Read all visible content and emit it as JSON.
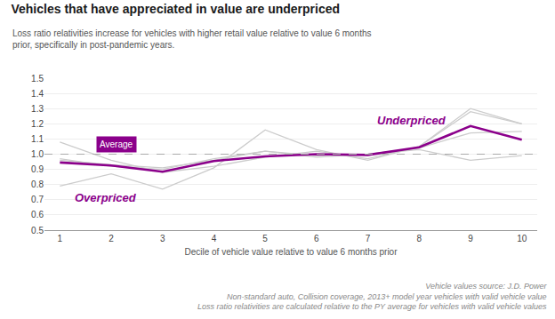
{
  "chart_data": {
    "type": "line",
    "title": "Vehicles that have appreciated in value are underpriced",
    "subtitle": "Loss ratio relativities increase for vehicles with higher retail value relative to value 6 months\nprior, specifically in post-pandemic years.",
    "xlabel": "Decile of vehicle value relative to value 6 months prior",
    "notes": [
      "Vehicle values source: J.D. Power",
      "Non-standard auto, Collision coverage, 2013+ model year vehicles with valid vehicle value",
      "Loss ratio relativities are calculated relative to the PY average for vehicles with valid vehicle values"
    ],
    "x": [
      1,
      2,
      3,
      4,
      5,
      6,
      7,
      8,
      9,
      10
    ],
    "xlim": [
      0.7,
      10.3
    ],
    "xticks": [
      1,
      2,
      3,
      4,
      5,
      6,
      7,
      8,
      9,
      10
    ],
    "ylim": [
      0.5,
      1.5
    ],
    "yticks": [
      0.5,
      0.6,
      0.7,
      0.8,
      0.9,
      {
        "value": 1.0,
        "label": "1.0"
      },
      1.1,
      1.2,
      1.3,
      1.4,
      1.5
    ],
    "grid": true,
    "series": [
      {
        "color": "#cccccc",
        "values": [
          1.08,
          0.96,
          0.88,
          0.92,
          0.98,
          1.02,
          0.97,
          1.05,
          1.3,
          1.2
        ]
      },
      {
        "color": "#cccccc",
        "values": [
          0.79,
          0.87,
          0.77,
          0.91,
          1.16,
          1.03,
          0.96,
          1.05,
          1.28,
          1.2
        ]
      },
      {
        "color": "#cccccc",
        "values": [
          0.96,
          0.93,
          0.91,
          0.96,
          1.02,
          0.99,
          1.0,
          1.04,
          1.14,
          1.15
        ]
      },
      {
        "color": "#cccccc",
        "values": [
          0.97,
          0.92,
          0.9,
          0.97,
          1.02,
          0.98,
          1.0,
          1.03,
          0.96,
          0.99
        ]
      },
      {
        "color": "#8B008B",
        "values": [
          0.945,
          0.925,
          0.885,
          0.955,
          0.985,
          1.0,
          0.995,
          1.045,
          1.185,
          1.095
        ]
      }
    ],
    "reference_line": {
      "value": 1.0,
      "color": "#aaaaaa",
      "line_style": "dashed"
    },
    "annotations": [
      {
        "text": "Average",
        "x": 2.1,
        "y": 1.065,
        "color": "#8B008B",
        "boxed": true
      },
      {
        "text": "Overpriced",
        "x": 1.9,
        "y": 0.715,
        "color": "#8B008B"
      },
      {
        "text": "Underpriced",
        "x": 7.85,
        "y": 1.225,
        "color": "#8B008B"
      }
    ]
  }
}
